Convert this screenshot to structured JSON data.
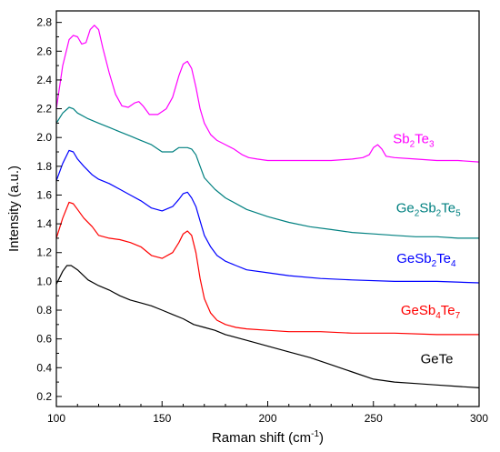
{
  "chart_data": {
    "type": "line",
    "xlabel": {
      "main": "Raman shift (cm",
      "sup": "-1",
      "tail": ")"
    },
    "ylabel": "Intensity (a.u.)",
    "xlim": [
      100,
      300
    ],
    "ylim": [
      0.13,
      2.88
    ],
    "xticks": [
      "100",
      "150",
      "200",
      "250",
      "300"
    ],
    "yticks": [
      "0.2",
      "0.4",
      "0.6",
      "0.8",
      "1.0",
      "1.2",
      "1.4",
      "1.6",
      "1.8",
      "2.0",
      "2.2",
      "2.4",
      "2.6",
      "2.8"
    ],
    "grid": false,
    "series": [
      {
        "name": "GeTe",
        "label_parts": [
          {
            "t": "GeTe"
          }
        ],
        "color": "#000000",
        "points": [
          [
            100,
            0.98
          ],
          [
            103,
            1.07
          ],
          [
            105,
            1.11
          ],
          [
            107,
            1.11
          ],
          [
            110,
            1.08
          ],
          [
            115,
            1.01
          ],
          [
            120,
            0.97
          ],
          [
            125,
            0.94
          ],
          [
            130,
            0.9
          ],
          [
            135,
            0.87
          ],
          [
            140,
            0.85
          ],
          [
            145,
            0.83
          ],
          [
            150,
            0.8
          ],
          [
            155,
            0.77
          ],
          [
            160,
            0.74
          ],
          [
            165,
            0.7
          ],
          [
            170,
            0.68
          ],
          [
            175,
            0.66
          ],
          [
            180,
            0.63
          ],
          [
            190,
            0.59
          ],
          [
            200,
            0.55
          ],
          [
            210,
            0.51
          ],
          [
            220,
            0.47
          ],
          [
            230,
            0.42
          ],
          [
            240,
            0.37
          ],
          [
            250,
            0.32
          ],
          [
            260,
            0.3
          ],
          [
            270,
            0.29
          ],
          [
            280,
            0.28
          ],
          [
            290,
            0.27
          ],
          [
            300,
            0.26
          ]
        ]
      },
      {
        "name": "GeSb4Te7",
        "label_parts": [
          {
            "t": "GeSb"
          },
          {
            "s": "4"
          },
          {
            "t": "Te"
          },
          {
            "s": "7"
          }
        ],
        "color": "#ff0000",
        "points": [
          [
            100,
            1.3
          ],
          [
            103,
            1.44
          ],
          [
            106,
            1.55
          ],
          [
            108,
            1.54
          ],
          [
            110,
            1.5
          ],
          [
            113,
            1.44
          ],
          [
            117,
            1.38
          ],
          [
            120,
            1.32
          ],
          [
            125,
            1.3
          ],
          [
            130,
            1.29
          ],
          [
            135,
            1.27
          ],
          [
            140,
            1.24
          ],
          [
            145,
            1.18
          ],
          [
            150,
            1.16
          ],
          [
            155,
            1.2
          ],
          [
            158,
            1.27
          ],
          [
            160,
            1.33
          ],
          [
            162,
            1.35
          ],
          [
            164,
            1.32
          ],
          [
            166,
            1.2
          ],
          [
            168,
            1.02
          ],
          [
            170,
            0.88
          ],
          [
            173,
            0.78
          ],
          [
            176,
            0.73
          ],
          [
            180,
            0.7
          ],
          [
            185,
            0.68
          ],
          [
            190,
            0.67
          ],
          [
            200,
            0.66
          ],
          [
            210,
            0.65
          ],
          [
            225,
            0.65
          ],
          [
            240,
            0.64
          ],
          [
            260,
            0.64
          ],
          [
            280,
            0.63
          ],
          [
            300,
            0.63
          ]
        ]
      },
      {
        "name": "GeSb2Te4",
        "label_parts": [
          {
            "t": "GeSb"
          },
          {
            "s": "2"
          },
          {
            "t": "Te"
          },
          {
            "s": "4"
          }
        ],
        "color": "#0000ff",
        "points": [
          [
            100,
            1.7
          ],
          [
            103,
            1.82
          ],
          [
            106,
            1.91
          ],
          [
            108,
            1.9
          ],
          [
            110,
            1.85
          ],
          [
            113,
            1.8
          ],
          [
            117,
            1.74
          ],
          [
            120,
            1.71
          ],
          [
            125,
            1.68
          ],
          [
            130,
            1.64
          ],
          [
            135,
            1.6
          ],
          [
            140,
            1.56
          ],
          [
            145,
            1.51
          ],
          [
            150,
            1.49
          ],
          [
            155,
            1.52
          ],
          [
            158,
            1.57
          ],
          [
            160,
            1.61
          ],
          [
            162,
            1.62
          ],
          [
            164,
            1.58
          ],
          [
            166,
            1.52
          ],
          [
            168,
            1.42
          ],
          [
            170,
            1.32
          ],
          [
            173,
            1.24
          ],
          [
            176,
            1.18
          ],
          [
            180,
            1.14
          ],
          [
            185,
            1.11
          ],
          [
            190,
            1.08
          ],
          [
            200,
            1.06
          ],
          [
            210,
            1.04
          ],
          [
            225,
            1.02
          ],
          [
            240,
            1.01
          ],
          [
            260,
            1.0
          ],
          [
            280,
            1.0
          ],
          [
            300,
            0.99
          ]
        ]
      },
      {
        "name": "Ge2Sb2Te5",
        "label_parts": [
          {
            "t": "Ge"
          },
          {
            "s": "2"
          },
          {
            "t": "Sb"
          },
          {
            "s": "2"
          },
          {
            "t": "Te"
          },
          {
            "s": "5"
          }
        ],
        "color": "#008080",
        "points": [
          [
            100,
            2.1
          ],
          [
            103,
            2.17
          ],
          [
            106,
            2.21
          ],
          [
            108,
            2.2
          ],
          [
            110,
            2.17
          ],
          [
            115,
            2.13
          ],
          [
            120,
            2.1
          ],
          [
            125,
            2.07
          ],
          [
            130,
            2.04
          ],
          [
            135,
            2.01
          ],
          [
            140,
            1.98
          ],
          [
            145,
            1.95
          ],
          [
            150,
            1.9
          ],
          [
            155,
            1.9
          ],
          [
            158,
            1.93
          ],
          [
            160,
            1.93
          ],
          [
            162,
            1.93
          ],
          [
            164,
            1.92
          ],
          [
            166,
            1.88
          ],
          [
            168,
            1.8
          ],
          [
            170,
            1.72
          ],
          [
            175,
            1.64
          ],
          [
            180,
            1.58
          ],
          [
            190,
            1.5
          ],
          [
            200,
            1.45
          ],
          [
            210,
            1.41
          ],
          [
            220,
            1.38
          ],
          [
            230,
            1.36
          ],
          [
            240,
            1.34
          ],
          [
            250,
            1.33
          ],
          [
            260,
            1.32
          ],
          [
            270,
            1.31
          ],
          [
            280,
            1.31
          ],
          [
            290,
            1.3
          ],
          [
            300,
            1.3
          ]
        ]
      },
      {
        "name": "Sb2Te3",
        "label_parts": [
          {
            "t": "Sb"
          },
          {
            "s": "2"
          },
          {
            "t": "Te"
          },
          {
            "s": "3"
          }
        ],
        "color": "#ff00ff",
        "points": [
          [
            100,
            2.2
          ],
          [
            103,
            2.5
          ],
          [
            106,
            2.68
          ],
          [
            108,
            2.71
          ],
          [
            110,
            2.7
          ],
          [
            112,
            2.65
          ],
          [
            114,
            2.66
          ],
          [
            116,
            2.75
          ],
          [
            118,
            2.78
          ],
          [
            120,
            2.75
          ],
          [
            122,
            2.62
          ],
          [
            125,
            2.45
          ],
          [
            128,
            2.3
          ],
          [
            131,
            2.22
          ],
          [
            134,
            2.21
          ],
          [
            137,
            2.24
          ],
          [
            139,
            2.25
          ],
          [
            141,
            2.22
          ],
          [
            144,
            2.16
          ],
          [
            148,
            2.16
          ],
          [
            152,
            2.2
          ],
          [
            155,
            2.28
          ],
          [
            158,
            2.43
          ],
          [
            160,
            2.51
          ],
          [
            162,
            2.53
          ],
          [
            164,
            2.48
          ],
          [
            166,
            2.35
          ],
          [
            168,
            2.2
          ],
          [
            170,
            2.1
          ],
          [
            173,
            2.02
          ],
          [
            176,
            1.98
          ],
          [
            180,
            1.95
          ],
          [
            184,
            1.92
          ],
          [
            188,
            1.88
          ],
          [
            191,
            1.86
          ],
          [
            195,
            1.85
          ],
          [
            200,
            1.84
          ],
          [
            210,
            1.84
          ],
          [
            220,
            1.84
          ],
          [
            230,
            1.84
          ],
          [
            240,
            1.85
          ],
          [
            245,
            1.86
          ],
          [
            248,
            1.88
          ],
          [
            250,
            1.93
          ],
          [
            252,
            1.95
          ],
          [
            254,
            1.92
          ],
          [
            256,
            1.87
          ],
          [
            260,
            1.86
          ],
          [
            270,
            1.85
          ],
          [
            280,
            1.84
          ],
          [
            290,
            1.84
          ],
          [
            300,
            1.83
          ]
        ]
      }
    ]
  }
}
